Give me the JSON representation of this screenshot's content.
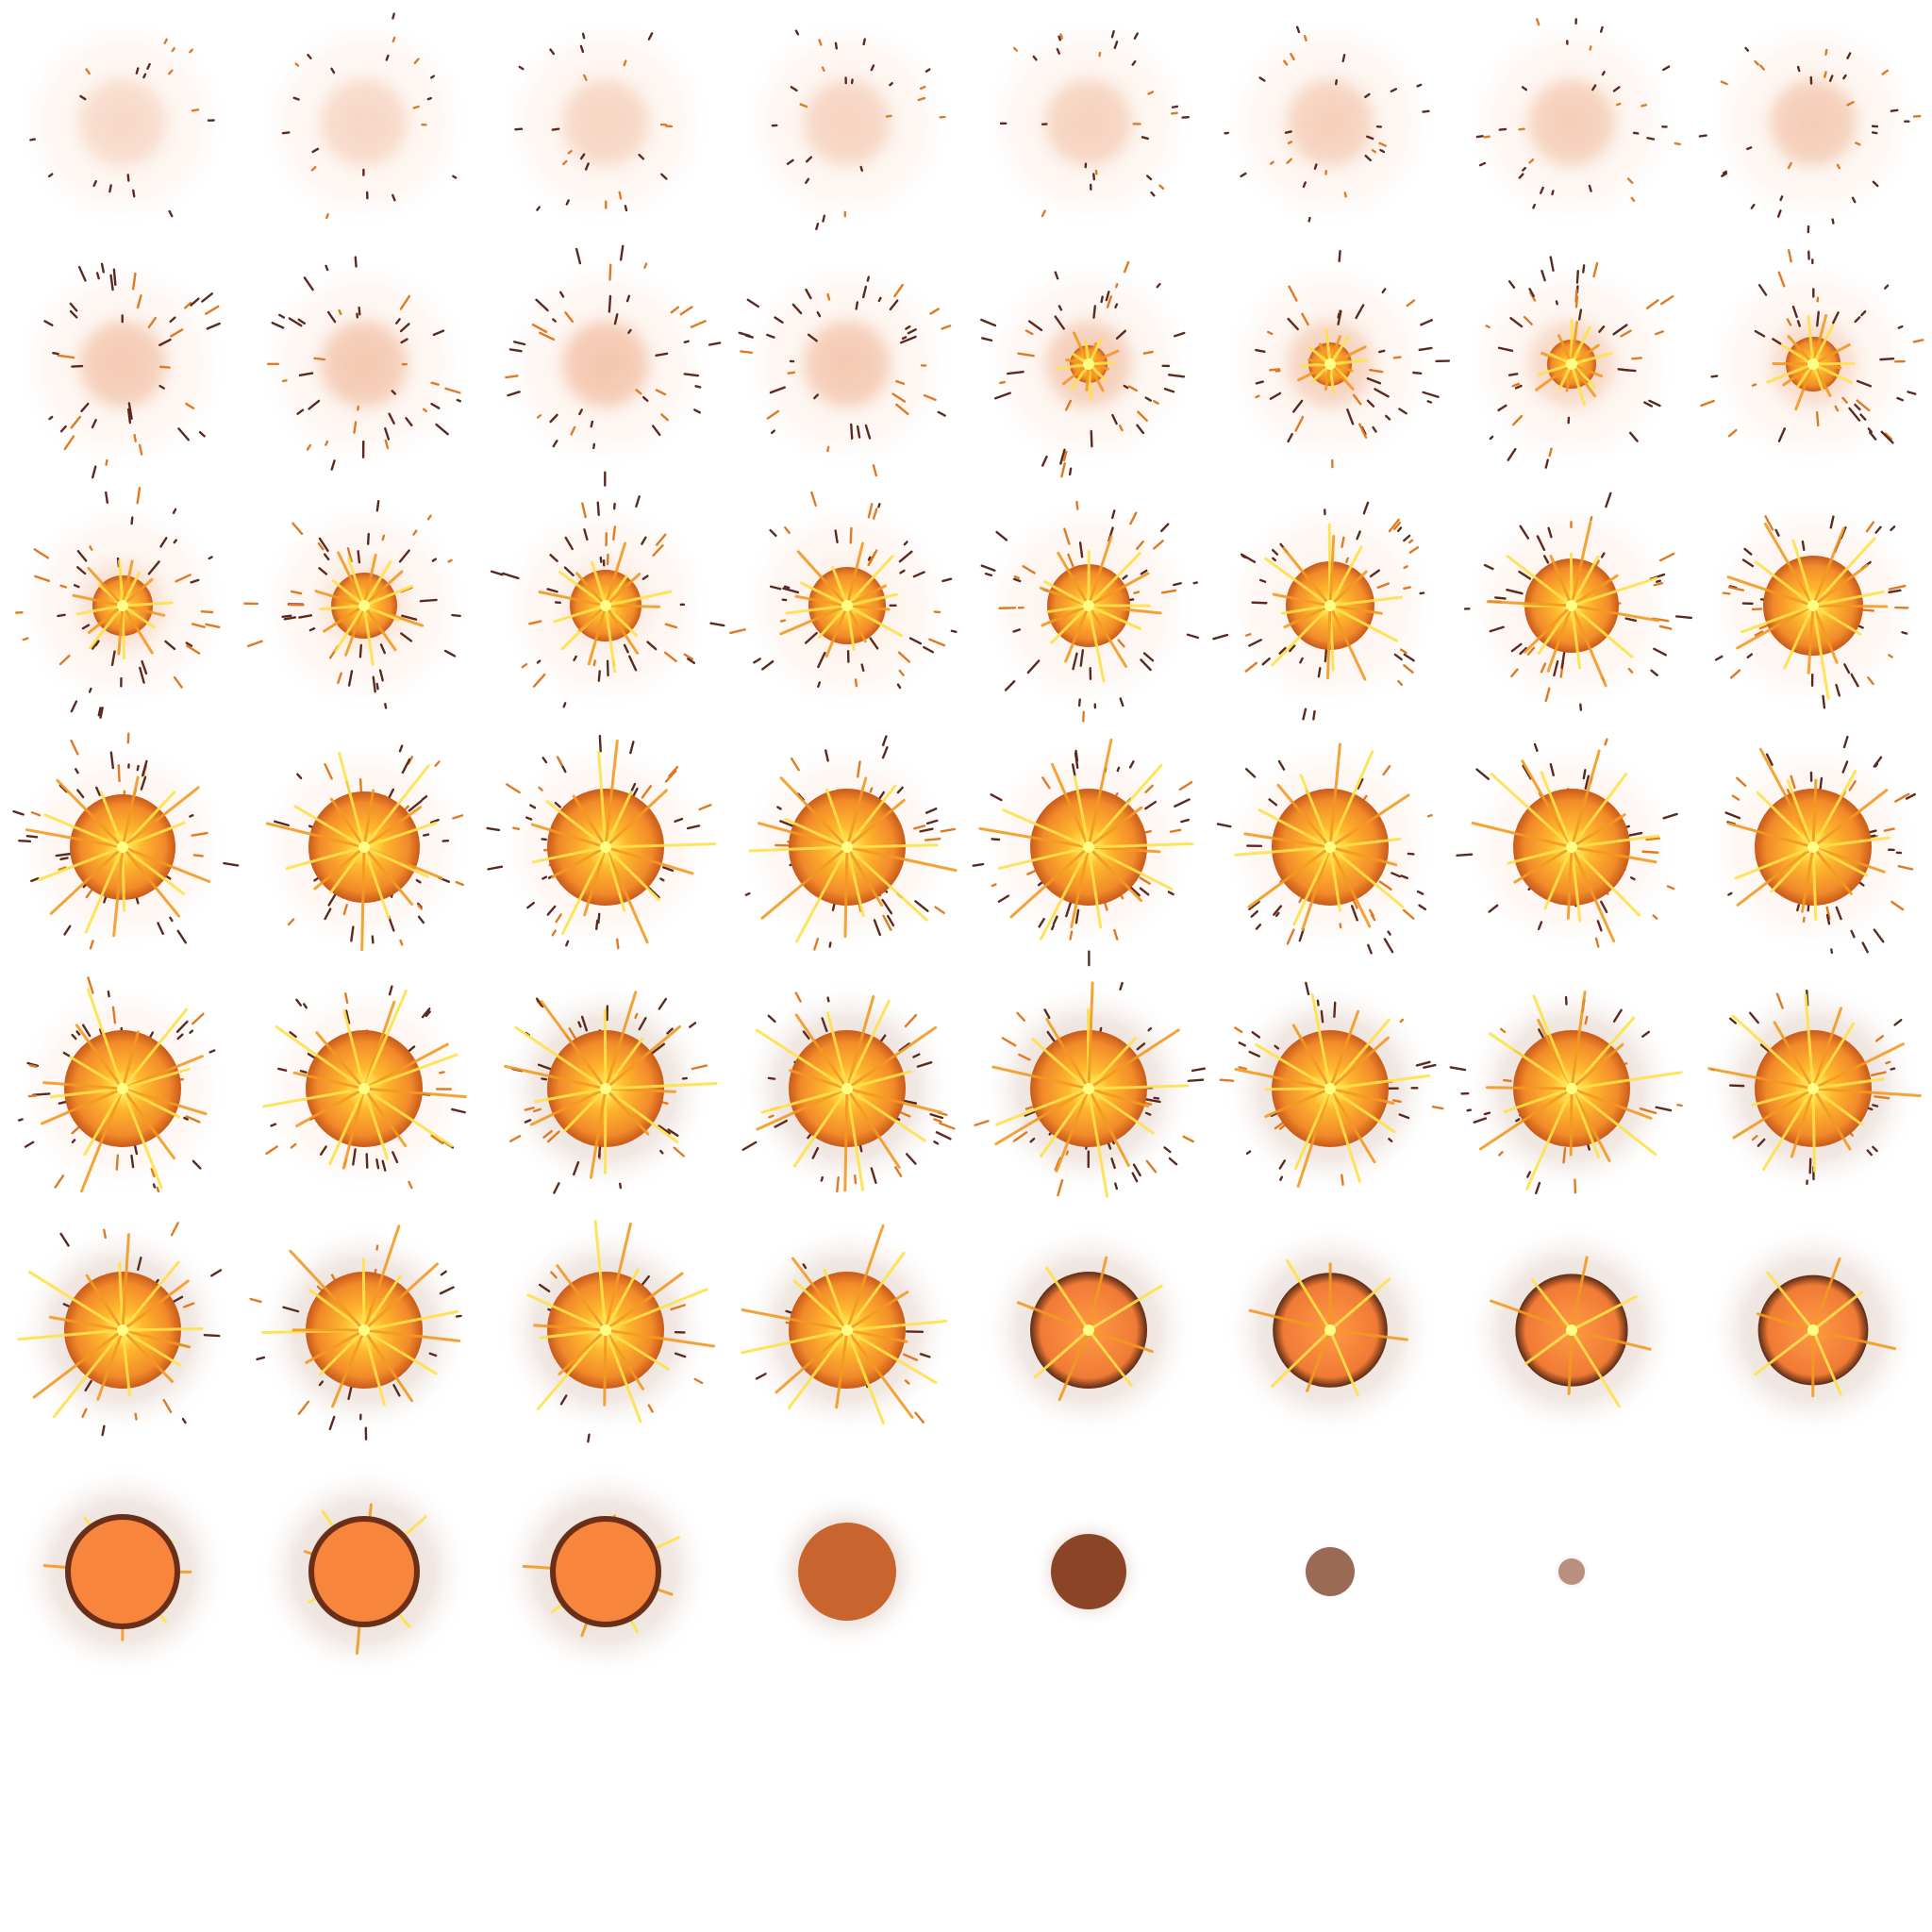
{
  "sheet": {
    "columns": 8,
    "rows": 8,
    "frame_count": 55,
    "background": "#ffffff"
  },
  "colors": {
    "glow_early": "#f6c9ae",
    "glow_late": "#c9a999",
    "flame_outer": "#e8731f",
    "flame_mid": "#ffa526",
    "flame_core": "#ffff66",
    "spark": "#5a2a20",
    "ember_late": "#7a3a1e"
  }
}
